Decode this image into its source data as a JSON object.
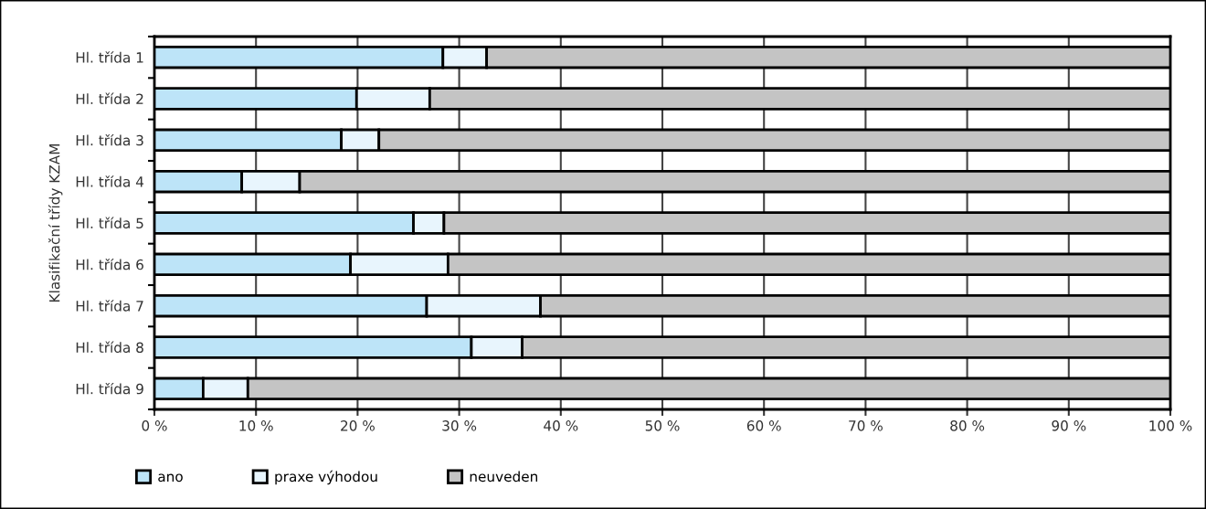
{
  "chart_data": {
    "type": "bar",
    "orientation": "horizontal",
    "stacked": true,
    "ylabel": "Klasifikační třídy KZAM",
    "categories": [
      "Hl. třída 1",
      "Hl. třída 2",
      "Hl. třída 3",
      "Hl. třída 4",
      "Hl. třída 5",
      "Hl. třída 6",
      "Hl. třída 7",
      "Hl. třída 8",
      "Hl. třída 9"
    ],
    "series": [
      {
        "name": "ano",
        "color": "#bde4f8",
        "values": [
          28.4,
          19.9,
          18.4,
          8.6,
          25.5,
          19.3,
          26.8,
          31.2,
          4.8
        ]
      },
      {
        "name": "praxe výhodou",
        "color": "#e8f5fd",
        "values": [
          4.3,
          7.2,
          3.7,
          5.7,
          3.0,
          9.6,
          11.2,
          5.0,
          4.4
        ]
      },
      {
        "name": "neuveden",
        "color": "#c4c4c4",
        "values": [
          67.3,
          72.9,
          77.9,
          85.7,
          71.5,
          71.1,
          62.0,
          63.8,
          90.8
        ]
      }
    ],
    "xlim": [
      0,
      100
    ],
    "xticks": [
      {
        "value": 0,
        "label": "0 %"
      },
      {
        "value": 10,
        "label": "10 %"
      },
      {
        "value": 20,
        "label": "20 %"
      },
      {
        "value": 30,
        "label": "30 %"
      },
      {
        "value": 40,
        "label": "40 %"
      },
      {
        "value": 50,
        "label": "50 %"
      },
      {
        "value": 60,
        "label": "60 %"
      },
      {
        "value": 70,
        "label": "70 %"
      },
      {
        "value": 80,
        "label": "80 %"
      },
      {
        "value": 90,
        "label": "90 %"
      },
      {
        "value": 100,
        "label": "100 %"
      }
    ],
    "grid": "x",
    "legend": "bottom left"
  }
}
